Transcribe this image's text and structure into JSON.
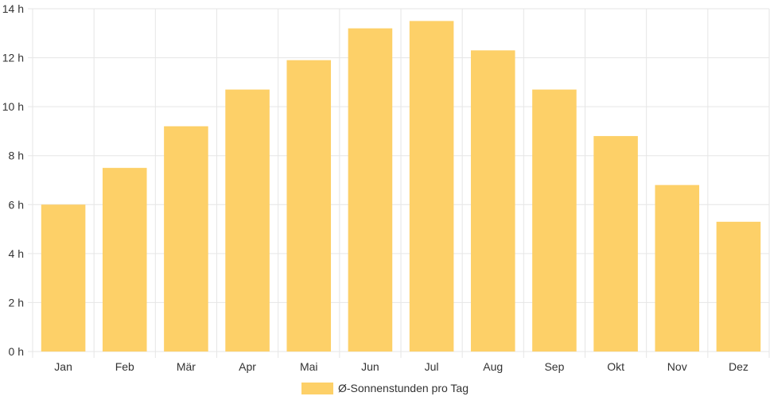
{
  "chart_data": {
    "type": "bar",
    "categories": [
      "Jan",
      "Feb",
      "Mär",
      "Apr",
      "Mai",
      "Jun",
      "Jul",
      "Aug",
      "Sep",
      "Okt",
      "Nov",
      "Dez"
    ],
    "series": [
      {
        "name": "Ø-Sonnenstunden pro Tag",
        "values": [
          6.0,
          7.5,
          9.2,
          10.7,
          11.9,
          13.2,
          13.5,
          12.3,
          10.7,
          8.8,
          6.8,
          5.3
        ],
        "color": "#fdd068"
      }
    ],
    "y_ticks": [
      "0 h",
      "2 h",
      "4 h",
      "6 h",
      "8 h",
      "10 h",
      "12 h",
      "14 h"
    ],
    "ylim": [
      0,
      14
    ],
    "grid": true,
    "legend_position": "bottom-center"
  }
}
